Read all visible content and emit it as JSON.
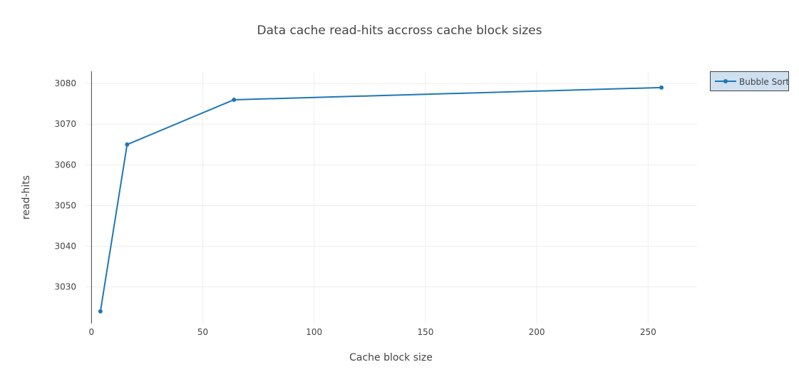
{
  "chart_data": {
    "type": "line",
    "title": "Data cache read-hits accross cache block sizes",
    "xlabel": "Cache block size",
    "ylabel": "read-hits",
    "xlim": [
      -3,
      272
    ],
    "ylim": [
      3021,
      3083
    ],
    "xticks": [
      0,
      50,
      100,
      150,
      200,
      250
    ],
    "yticks": [
      3030,
      3040,
      3050,
      3060,
      3070,
      3080
    ],
    "grid": true,
    "legend_position": "top-right",
    "series": [
      {
        "name": "Bubble Sort",
        "color": "#1f77b4",
        "x": [
          4,
          16,
          64,
          256
        ],
        "y": [
          3024,
          3065,
          3076,
          3079
        ]
      }
    ]
  }
}
